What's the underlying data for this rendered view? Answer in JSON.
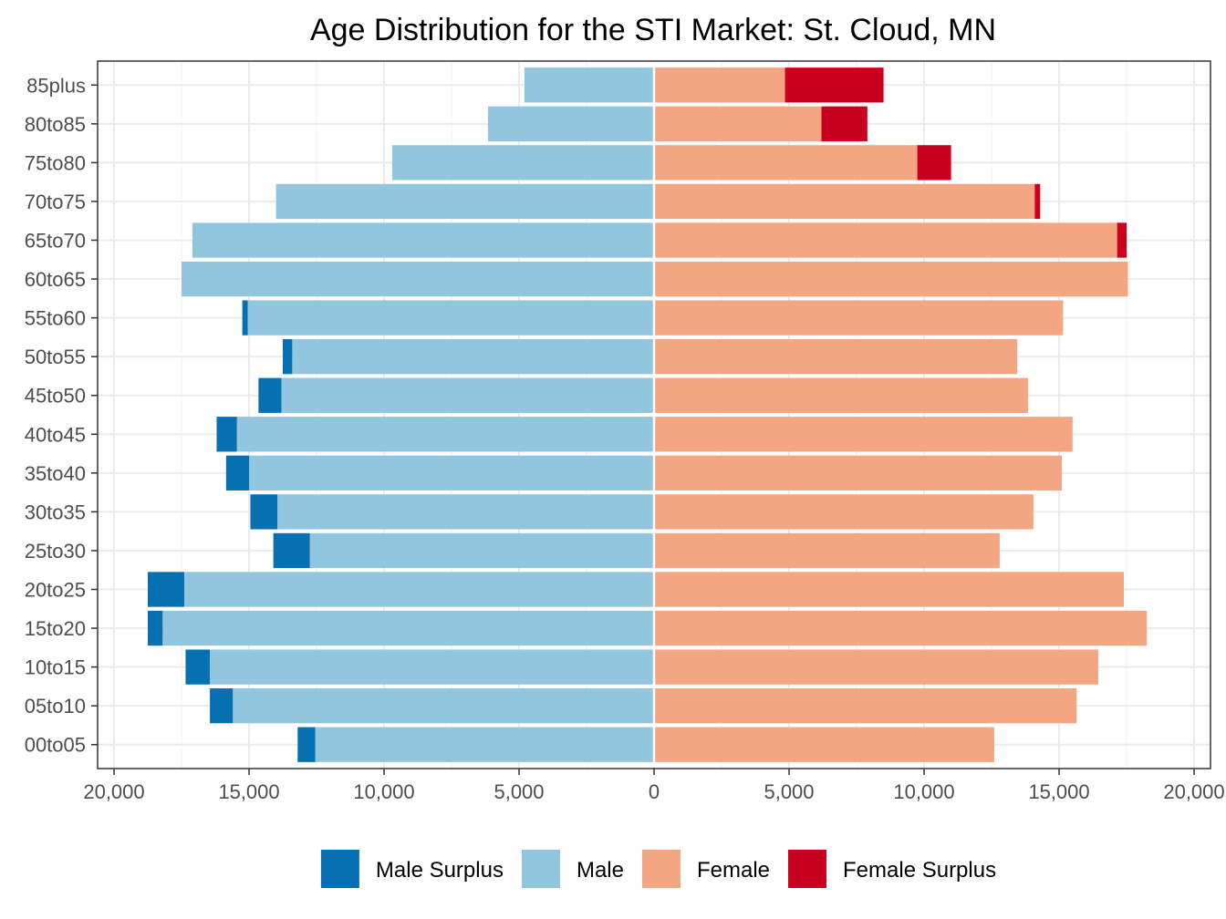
{
  "chart_data": {
    "type": "bar",
    "orientation": "horizontal",
    "title": "Age Distribution for the STI Market: St. Cloud, MN",
    "xlabel": "",
    "ylabel": "",
    "xlim": [
      -20000,
      20000
    ],
    "x_ticks": [
      -20000,
      -15000,
      -10000,
      -5000,
      0,
      5000,
      10000,
      15000,
      20000
    ],
    "x_tick_labels": [
      "20,000",
      "15,000",
      "10,000",
      "5,000",
      "0",
      "5,000",
      "10,000",
      "15,000",
      "20,000"
    ],
    "grid": true,
    "legend_position": "bottom",
    "categories": [
      "00to05",
      "05to10",
      "10to15",
      "15to20",
      "20to25",
      "25to30",
      "30to35",
      "35to40",
      "40to45",
      "45to50",
      "50to55",
      "55to60",
      "60to65",
      "65to70",
      "70to75",
      "75to80",
      "80to85",
      "85plus"
    ],
    "series": [
      {
        "name": "Male Surplus",
        "color": "#0571b0",
        "side": "left",
        "stack": "outer",
        "values": [
          650,
          850,
          900,
          550,
          1350,
          1350,
          1000,
          850,
          750,
          850,
          350,
          200,
          0,
          0,
          0,
          0,
          0,
          0
        ]
      },
      {
        "name": "Male",
        "color": "#92c5de",
        "side": "left",
        "stack": "inner",
        "values": [
          12550,
          15600,
          16450,
          18200,
          17400,
          12750,
          13950,
          15000,
          15450,
          13800,
          13400,
          15050,
          17500,
          17100,
          14000,
          9700,
          6150,
          4800
        ]
      },
      {
        "name": "Female",
        "color": "#f4a582",
        "side": "right",
        "stack": "inner",
        "values": [
          12600,
          15650,
          16450,
          18250,
          17400,
          12800,
          14050,
          15100,
          15500,
          13850,
          13450,
          15150,
          17550,
          17150,
          14100,
          9750,
          6200,
          4850
        ]
      },
      {
        "name": "Female Surplus",
        "color": "#ca0020",
        "side": "right",
        "stack": "outer",
        "values": [
          0,
          0,
          0,
          0,
          0,
          0,
          0,
          0,
          0,
          0,
          0,
          0,
          0,
          350,
          200,
          1250,
          1700,
          3650
        ]
      }
    ]
  }
}
